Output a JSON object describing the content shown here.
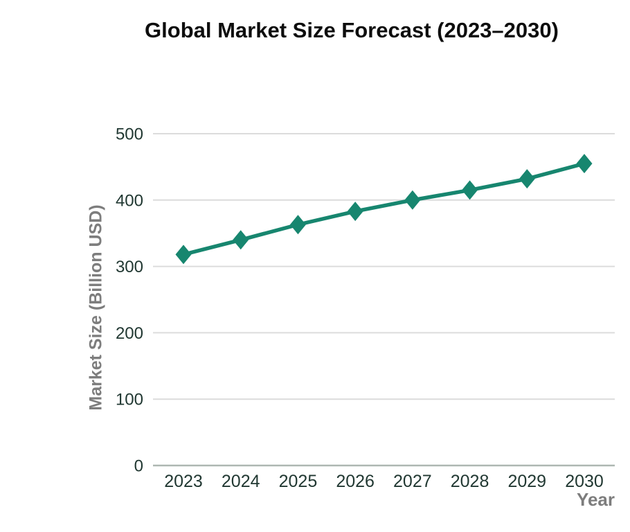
{
  "page": {
    "background": "#ffffff"
  },
  "chart_data": {
    "type": "line",
    "title": "Global Market Size Forecast (2023–2030)",
    "xlabel": "Year",
    "ylabel": "Market Size (Billion USD)",
    "categories": [
      "2023",
      "2024",
      "2025",
      "2026",
      "2027",
      "2028",
      "2029",
      "2030"
    ],
    "series": [
      {
        "name": "Market Size",
        "values": [
          318,
          340,
          363,
          383,
          400,
          415,
          432,
          455
        ]
      }
    ],
    "ylim": [
      0,
      500
    ],
    "yticks": [
      0,
      100,
      200,
      300,
      400,
      500
    ],
    "grid": "horizontal",
    "legend": "none",
    "marker": "diamond",
    "colors": {
      "line": "#17866F",
      "marker": "#17866F",
      "tick_label": "#213832",
      "axis_label": "#7d7d7d",
      "title": "#0d0d0d",
      "gridline": "#dcdcdc",
      "axis_line": "#aeb7b1",
      "background": "#ffffff"
    }
  }
}
